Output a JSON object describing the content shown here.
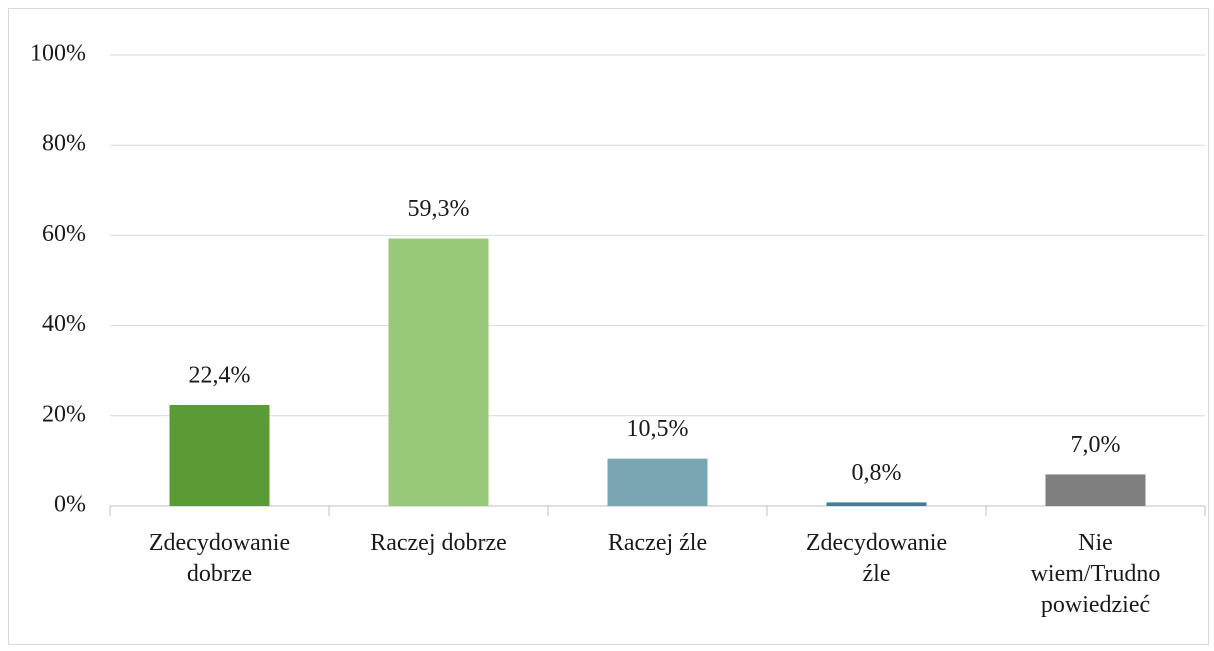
{
  "chart_data": {
    "type": "bar",
    "categories": [
      "Zdecydowanie dobrze",
      "Raczej dobrze",
      "Raczej źle",
      "Zdecydowanie źle",
      "Nie wiem/Trudno powiedzieć"
    ],
    "values": [
      22.4,
      59.3,
      10.5,
      0.8,
      7.0
    ],
    "value_labels": [
      "22,4%",
      "59,3%",
      "10,5%",
      "0,8%",
      "7,0%"
    ],
    "colors": [
      "#5b9b36",
      "#98c97a",
      "#7aa6b4",
      "#3e7f96",
      "#7f7f7f"
    ],
    "ylim": [
      0,
      100
    ],
    "yticks": [
      {
        "value": 0,
        "label": "0%"
      },
      {
        "value": 20,
        "label": "20%"
      },
      {
        "value": 40,
        "label": "40%"
      },
      {
        "value": 60,
        "label": "60%"
      },
      {
        "value": 80,
        "label": "80%"
      },
      {
        "value": 100,
        "label": "100%"
      }
    ],
    "grid": true
  }
}
